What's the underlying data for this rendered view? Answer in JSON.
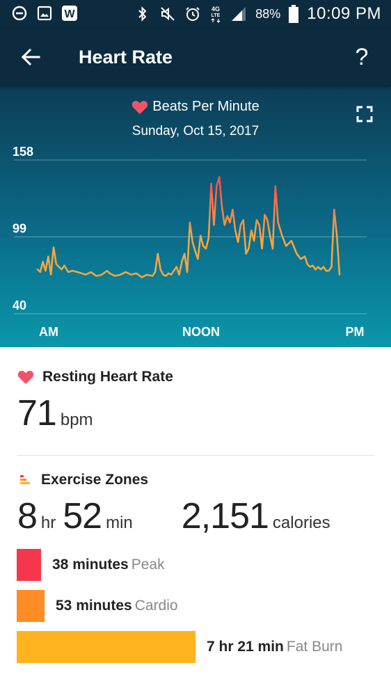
{
  "status_bar": {
    "left_icons": [
      "do-not-disturb-icon",
      "gallery-icon",
      "w-app-icon"
    ],
    "right_icons": [
      "bluetooth-icon",
      "mute-icon",
      "alarm-icon",
      "lte-icon",
      "signal-icon"
    ],
    "network": "4G LTE",
    "battery": "88%",
    "time": "10:09 PM"
  },
  "app_bar": {
    "title": "Heart Rate",
    "help": "?"
  },
  "chart": {
    "heading": "Beats Per Minute",
    "date": "Sunday, Oct 15, 2017"
  },
  "chart_data": {
    "type": "line",
    "title": "Beats Per Minute",
    "subtitle": "Sunday, Oct 15, 2017",
    "y_ticks": [
      "158",
      "99",
      "40"
    ],
    "x_ticks": [
      "AM",
      "NOON",
      "PM"
    ],
    "ylim": [
      40,
      158
    ],
    "grid": true,
    "gradient": [
      "#ff4a4f",
      "#ffa63d"
    ],
    "series": [
      {
        "x": [
          0.0,
          0.2,
          0.4,
          0.6,
          0.8,
          1.0,
          1.2,
          1.4,
          1.6,
          1.8,
          2.0,
          2.3,
          2.6,
          3.0,
          3.3,
          3.6,
          4.0,
          4.4,
          4.8,
          5.2,
          5.4,
          5.8,
          6.2,
          6.6,
          7.0,
          7.4,
          7.8,
          8.2,
          8.6,
          8.8,
          9.0,
          9.2,
          9.4,
          9.6,
          9.8,
          10.0,
          10.2,
          10.4,
          10.6,
          10.8,
          11.0,
          11.2,
          11.4,
          11.6,
          11.8,
          12.0,
          12.2,
          12.4,
          12.6,
          12.8,
          13.0,
          13.2,
          13.4,
          13.6,
          13.8,
          14.0,
          14.2,
          14.4,
          14.6,
          14.8,
          15.0,
          15.2,
          15.4,
          15.6,
          15.8,
          16.0,
          16.2,
          16.4,
          16.6,
          16.8,
          17.0,
          17.2,
          17.4,
          17.6,
          17.8,
          18.0,
          18.3,
          18.6,
          19.0,
          19.4,
          19.7,
          20.0,
          20.2,
          20.4,
          20.6,
          20.8,
          21.0,
          21.2,
          21.4,
          21.6,
          21.8,
          22.0,
          22.2,
          22.4,
          22.6
        ],
        "y": [
          74,
          72,
          80,
          73,
          84,
          70,
          91,
          78,
          76,
          74,
          77,
          72,
          73,
          72,
          71,
          70,
          72,
          69,
          70,
          73,
          71,
          69,
          70,
          72,
          70,
          71,
          68,
          70,
          69,
          72,
          86,
          74,
          70,
          69,
          71,
          70,
          73,
          76,
          70,
          80,
          86,
          72,
          110,
          95,
          88,
          82,
          100,
          92,
          90,
          98,
          140,
          108,
          138,
          145,
          122,
          108,
          115,
          110,
          120,
          104,
          95,
          108,
          112,
          86,
          90,
          104,
          96,
          112,
          108,
          90,
          116,
          112,
          100,
          90,
          138,
          110,
          100,
          92,
          96,
          86,
          82,
          84,
          78,
          76,
          77,
          74,
          76,
          74,
          76,
          73,
          73,
          76,
          120,
          100,
          70
        ]
      }
    ]
  },
  "resting": {
    "label": "Resting Heart Rate",
    "value": "71",
    "unit": "bpm"
  },
  "exercise": {
    "label": "Exercise Zones",
    "hours": "8",
    "hours_unit": "hr",
    "minutes": "52",
    "minutes_unit": "min",
    "calories": "2,151",
    "calories_unit": "calories",
    "zones": [
      {
        "duration": "38 minutes",
        "name": "Peak",
        "minutes": 38,
        "color": "#f5374e"
      },
      {
        "duration": "53 minutes",
        "name": "Cardio",
        "minutes": 53,
        "color": "#ff8c25"
      },
      {
        "duration": "7 hr 21 min",
        "name": "Fat Burn",
        "minutes": 441,
        "color": "#ffb31f"
      }
    ]
  },
  "colors": {
    "header_bg": "#0d2b3e",
    "heart": "#f25268"
  }
}
